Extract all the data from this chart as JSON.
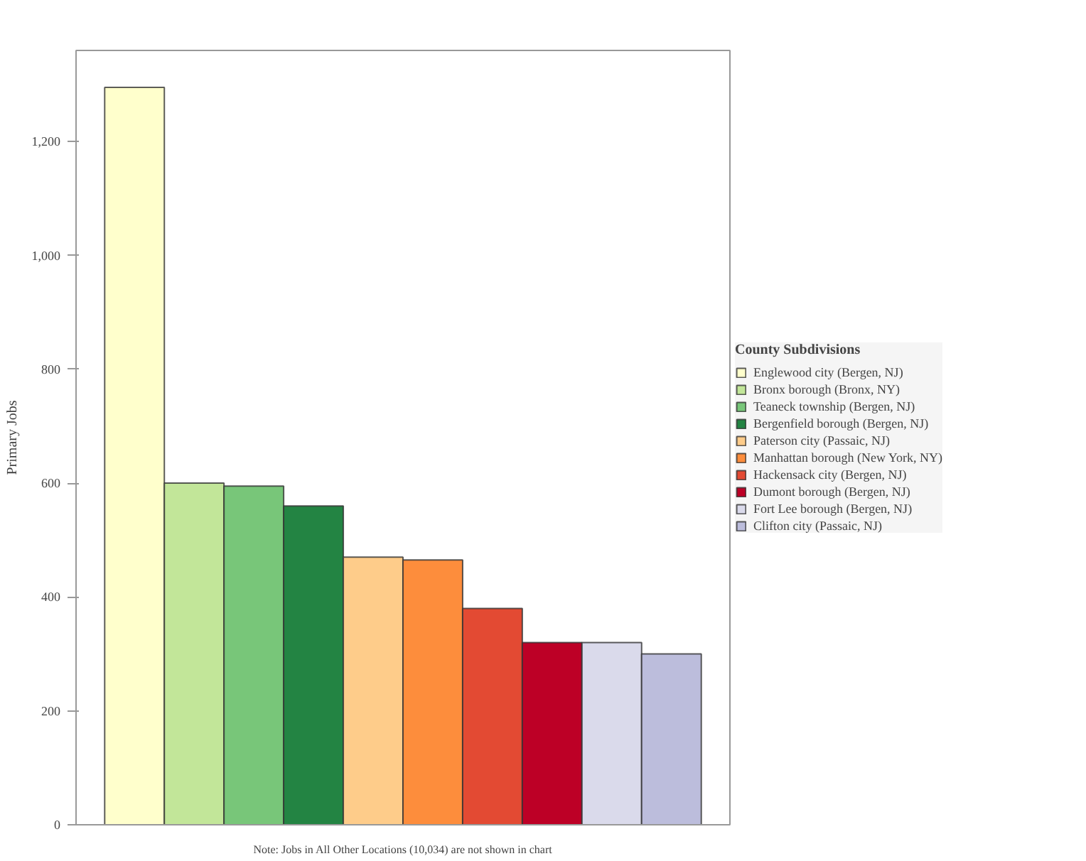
{
  "chart_data": {
    "type": "bar",
    "ylabel": "Primary Jobs",
    "legend_title": "County Subdivisions",
    "categories": [
      null,
      null,
      null,
      null,
      null,
      null,
      null,
      null,
      null,
      null
    ],
    "series": [
      {
        "name": "Englewood city (Bergen, NJ)",
        "color": "#ffffcc",
        "values": [
          1295,
          null,
          null,
          null,
          null,
          null,
          null,
          null,
          null,
          null
        ]
      },
      {
        "name": "Bronx borough (Bronx, NY)",
        "color": "#c2e699",
        "values": [
          null,
          600,
          null,
          null,
          null,
          null,
          null,
          null,
          null,
          null
        ]
      },
      {
        "name": "Teaneck township (Bergen, NJ)",
        "color": "#78c679",
        "values": [
          null,
          null,
          595,
          null,
          null,
          null,
          null,
          null,
          null,
          null
        ]
      },
      {
        "name": "Bergenfield borough (Bergen, NJ)",
        "color": "#238443",
        "values": [
          null,
          null,
          null,
          560,
          null,
          null,
          null,
          null,
          null,
          null
        ]
      },
      {
        "name": "Paterson city (Passaic, NJ)",
        "color": "#fecc8a",
        "values": [
          null,
          null,
          null,
          null,
          470,
          null,
          null,
          null,
          null,
          null
        ]
      },
      {
        "name": "Manhattan borough (New York, NY)",
        "color": "#fd8d3c",
        "values": [
          null,
          null,
          null,
          null,
          null,
          465,
          null,
          null,
          null,
          null
        ]
      },
      {
        "name": "Hackensack city (Bergen, NJ)",
        "color": "#e34a33",
        "values": [
          null,
          null,
          null,
          null,
          null,
          null,
          380,
          null,
          null,
          null
        ]
      },
      {
        "name": "Dumont borough (Bergen, NJ)",
        "color": "#bd0026",
        "values": [
          null,
          null,
          null,
          null,
          null,
          null,
          null,
          320,
          null,
          null
        ]
      },
      {
        "name": "Fort Lee borough (Bergen, NJ)",
        "color": "#dadaeb",
        "values": [
          null,
          null,
          null,
          null,
          null,
          null,
          null,
          null,
          320,
          null
        ]
      },
      {
        "name": "Clifton city (Passaic, NJ)",
        "color": "#bcbddc",
        "values": [
          null,
          null,
          null,
          null,
          null,
          null,
          null,
          null,
          null,
          300
        ]
      }
    ],
    "ylim": [
      0,
      1360
    ],
    "yticks": [
      0,
      200,
      400,
      600,
      800,
      {
        "value": 1000,
        "label": "1,000"
      },
      {
        "value": 1200,
        "label": "1,200"
      }
    ],
    "tick_labels": "y",
    "grid": false,
    "legend": "right",
    "annotations": [
      "Note: Jobs in All Other Locations (10,034) are not shown in chart"
    ]
  }
}
